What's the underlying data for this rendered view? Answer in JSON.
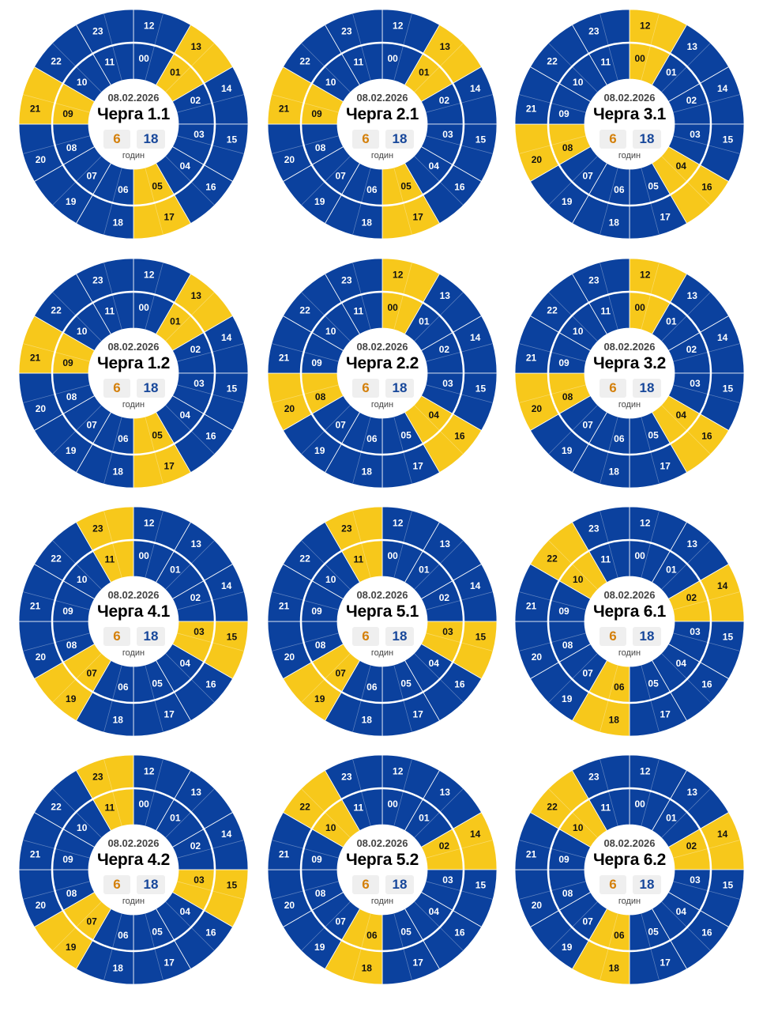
{
  "colors": {
    "on": "#0b419e",
    "off": "#f7c81b",
    "off_count": "#d4800b",
    "on_count": "#17479a"
  },
  "hour_labels": {
    "outer": [
      "12",
      "13",
      "14",
      "15",
      "16",
      "17",
      "18",
      "19",
      "20",
      "21",
      "22",
      "23"
    ],
    "inner": [
      "00",
      "01",
      "02",
      "03",
      "04",
      "05",
      "06",
      "07",
      "08",
      "09",
      "10",
      "11"
    ]
  },
  "chart_data": [
    {
      "type": "pie",
      "title": "Черга 1.1",
      "date": "08.02.2026",
      "outage_hours": [
        1,
        5,
        9,
        13,
        17,
        21
      ],
      "off_count": "6",
      "on_count": "18",
      "unit": "годин"
    },
    {
      "type": "pie",
      "title": "Черга 2.1",
      "date": "08.02.2026",
      "outage_hours": [
        1,
        5,
        9,
        13,
        17,
        21
      ],
      "off_count": "6",
      "on_count": "18",
      "unit": "годин"
    },
    {
      "type": "pie",
      "title": "Черга 3.1",
      "date": "08.02.2026",
      "outage_hours": [
        0,
        4,
        8,
        12,
        16,
        20
      ],
      "off_count": "6",
      "on_count": "18",
      "unit": "годин"
    },
    {
      "type": "pie",
      "title": "Черга 1.2",
      "date": "08.02.2026",
      "outage_hours": [
        1,
        5,
        9,
        13,
        17,
        21
      ],
      "off_count": "6",
      "on_count": "18",
      "unit": "годин"
    },
    {
      "type": "pie",
      "title": "Черга 2.2",
      "date": "08.02.2026",
      "outage_hours": [
        0,
        4,
        8,
        12,
        16,
        20
      ],
      "off_count": "6",
      "on_count": "18",
      "unit": "годин"
    },
    {
      "type": "pie",
      "title": "Черга 3.2",
      "date": "08.02.2026",
      "outage_hours": [
        0,
        4,
        8,
        12,
        16,
        20
      ],
      "off_count": "6",
      "on_count": "18",
      "unit": "годин"
    },
    {
      "type": "pie",
      "title": "Черга 4.1",
      "date": "08.02.2026",
      "outage_hours": [
        3,
        7,
        11,
        15,
        19,
        23
      ],
      "off_count": "6",
      "on_count": "18",
      "unit": "годин"
    },
    {
      "type": "pie",
      "title": "Черга 5.1",
      "date": "08.02.2026",
      "outage_hours": [
        3,
        7,
        11,
        15,
        19,
        23
      ],
      "off_count": "6",
      "on_count": "18",
      "unit": "годин"
    },
    {
      "type": "pie",
      "title": "Черга 6.1",
      "date": "08.02.2026",
      "outage_hours": [
        2,
        6,
        10,
        14,
        18,
        22
      ],
      "off_count": "6",
      "on_count": "18",
      "unit": "годин"
    },
    {
      "type": "pie",
      "title": "Черга 4.2",
      "date": "08.02.2026",
      "outage_hours": [
        3,
        7,
        11,
        15,
        19,
        23
      ],
      "off_count": "6",
      "on_count": "18",
      "unit": "годин"
    },
    {
      "type": "pie",
      "title": "Черга 5.2",
      "date": "08.02.2026",
      "outage_hours": [
        2,
        6,
        10,
        14,
        18,
        22
      ],
      "off_count": "6",
      "on_count": "18",
      "unit": "годин"
    },
    {
      "type": "pie",
      "title": "Черга 6.2",
      "date": "08.02.2026",
      "outage_hours": [
        2,
        6,
        10,
        14,
        18,
        22
      ],
      "off_count": "6",
      "on_count": "18",
      "unit": "годин"
    }
  ]
}
